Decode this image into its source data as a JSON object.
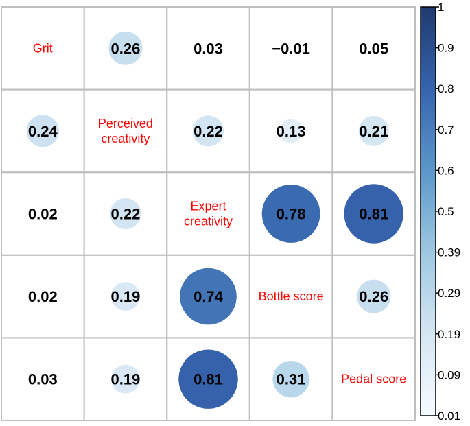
{
  "chart_data": {
    "type": "heatmap",
    "variables": [
      [
        "Grit"
      ],
      [
        "Perceived",
        "creativity"
      ],
      [
        "Expert",
        "creativity"
      ],
      [
        "Bottle score"
      ],
      [
        "Pedal score"
      ]
    ],
    "cells": [
      [
        null,
        "0.26",
        "0.03",
        "−0.01",
        "0.05"
      ],
      [
        "0.24",
        null,
        "0.22",
        "0.13",
        "0.21"
      ],
      [
        "0.02",
        "0.22",
        null,
        "0.78",
        "0.81"
      ],
      [
        "0.02",
        "0.19",
        "0.74",
        null,
        "0.26"
      ],
      [
        "0.03",
        "0.19",
        "0.81",
        "0.31",
        null
      ]
    ],
    "circle_cells": [
      [
        false,
        true,
        false,
        false,
        false
      ],
      [
        true,
        false,
        true,
        true,
        true
      ],
      [
        false,
        true,
        false,
        true,
        true
      ],
      [
        false,
        true,
        true,
        false,
        true
      ],
      [
        false,
        true,
        true,
        true,
        false
      ]
    ],
    "colorbar": {
      "range": [
        0.01,
        1
      ],
      "ticks": [
        "1",
        "0.9",
        "0.8",
        "0.7",
        "0.6",
        "0.5",
        "0.39",
        "0.29",
        "0.19",
        "0.09",
        "0.01"
      ],
      "color_low": "#f7fbff",
      "color_high": "#1f3a6e"
    },
    "colors": {
      "label": "#ff0000",
      "grid": "#bfbfbf"
    }
  }
}
